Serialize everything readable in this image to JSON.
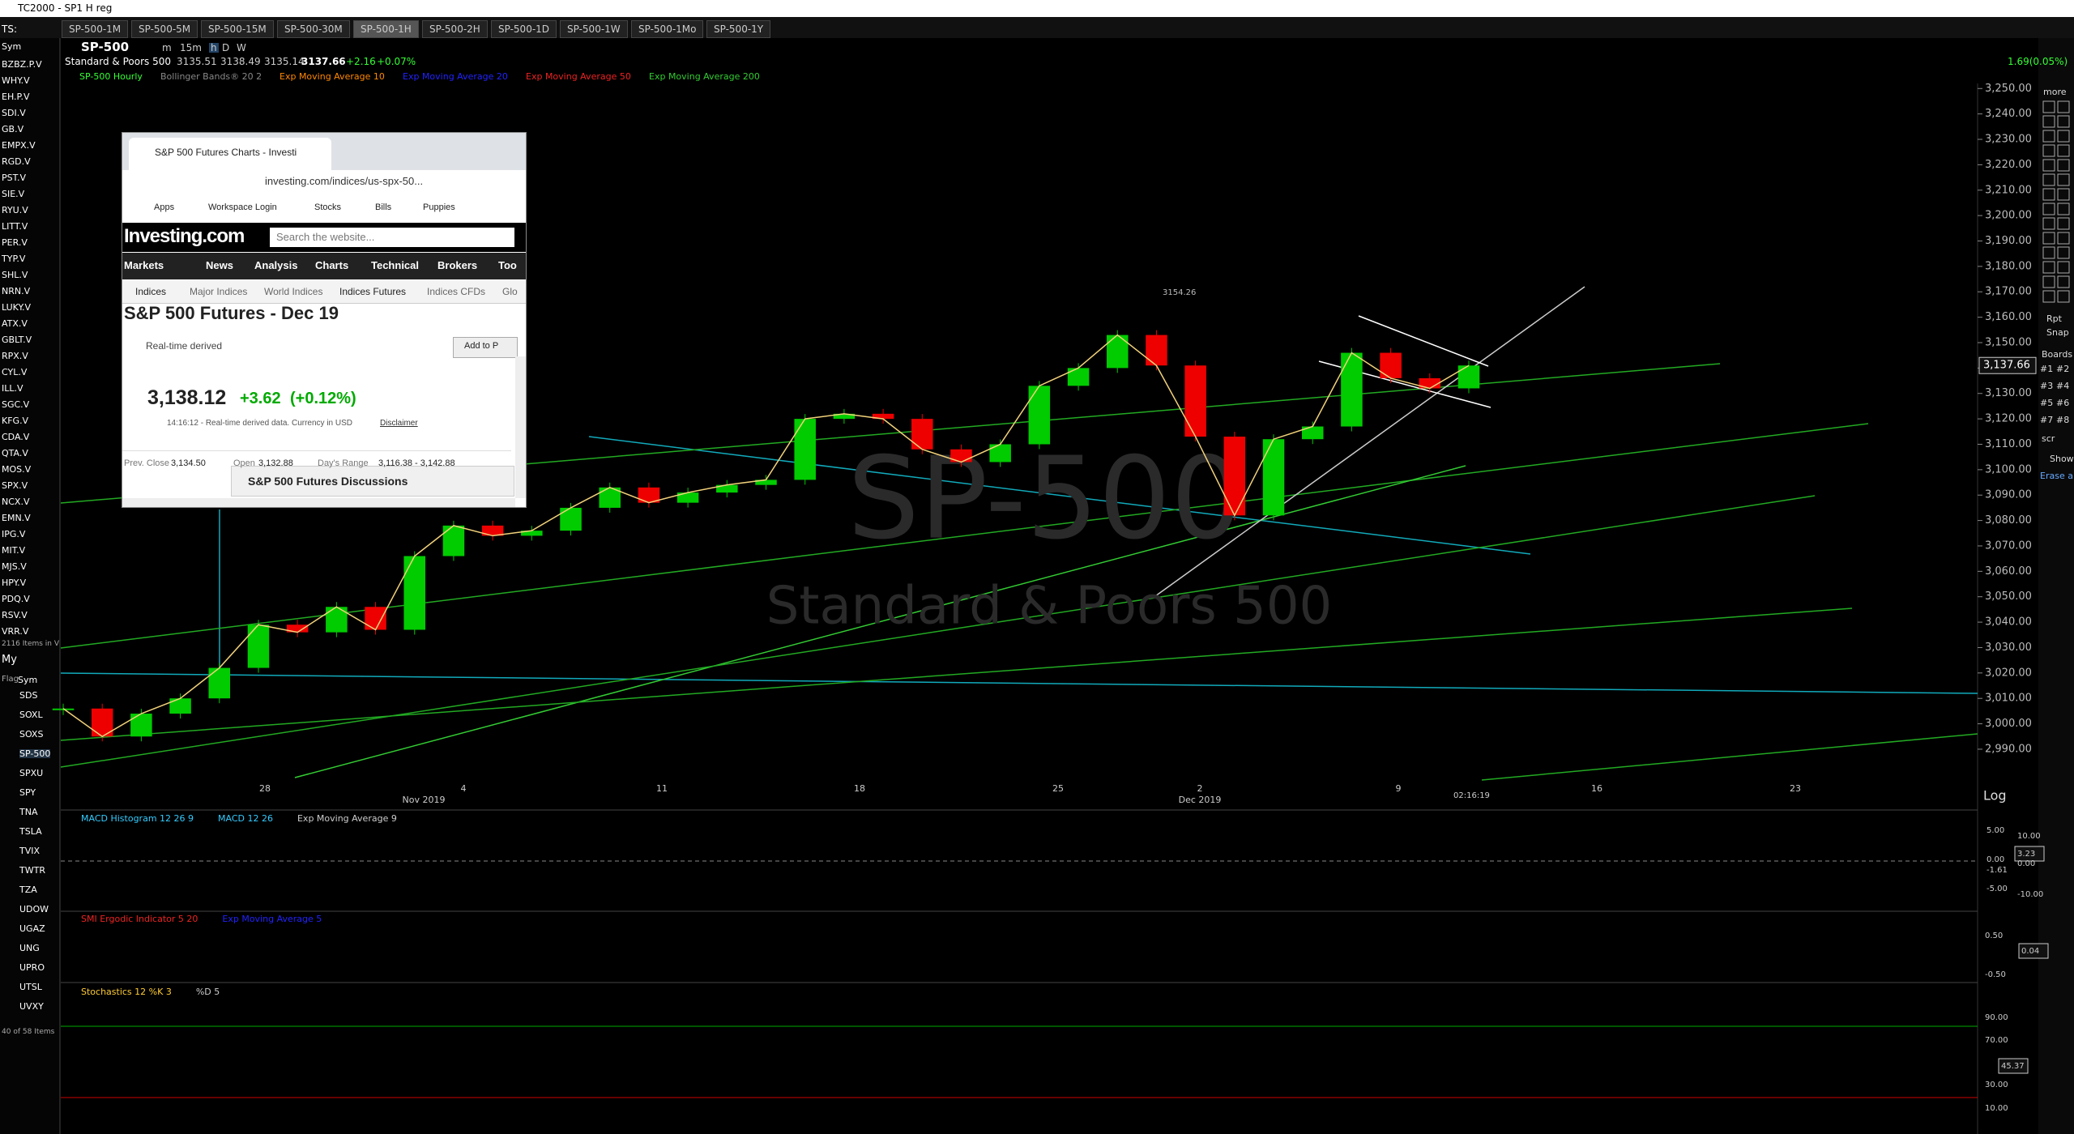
{
  "title_bar": "TC2000 - SP1 H reg",
  "tabs": [
    "SP-500-1M",
    "SP-500-5M",
    "SP-500-15M",
    "SP-500-30M",
    "SP-500-1H",
    "SP-500-2H",
    "SP-500-1D",
    "SP-500-1W",
    "SP-500-1Mo",
    "SP-500-1Y"
  ],
  "symbol": "SP-500",
  "timeframes": [
    "m",
    "15m",
    "h",
    "D",
    "W"
  ],
  "info": {
    "name": "Standard & Poors 500",
    "open": "3135.51",
    "high": "3138.49",
    "low": "3135.14",
    "last": "3137.66",
    "change": "+2.16",
    "change_pct": "+0.07%",
    "right_change": "1.69(0.05%)"
  },
  "indicators": [
    "SP-500 Hourly",
    "Bollinger Bands® 20 2",
    "Exp Moving Average 10",
    "Exp Moving Average 20",
    "Exp Moving Average 50",
    "Exp Moving Average 200"
  ],
  "watchlist": {
    "label": "TS:",
    "header": "Sym",
    "symbols": [
      "BZBZ.P.V",
      "WHY.V",
      "EH.P.V",
      "SDI.V",
      "GB.V",
      "EMPX.V",
      "RGD.V",
      "PST.V",
      "SIE.V",
      "RYU.V",
      "LITT.V",
      "PER.V",
      "TYP.V",
      "SHL.V",
      "NRN.V",
      "LUKY.V",
      "ATX.V",
      "GBLT.V",
      "RPX.V",
      "CYL.V",
      "ILL.V",
      "SGC.V",
      "KFG.V",
      "CDA.V",
      "QTA.V",
      "MOS.V",
      "SPX.V",
      "NCX.V",
      "EMN.V",
      "IPG.V",
      "MIT.V",
      "MJS.V",
      "HPY.V",
      "PDQ.V",
      "RSV.V",
      "VRR.V"
    ],
    "count": "2116 Items in V"
  },
  "watchlist2": {
    "label": "My",
    "flag": "Flag",
    "header": "Sym",
    "symbols": [
      "SDS",
      "SOXL",
      "SOXS",
      "SP-500",
      "SPXU",
      "SPY",
      "TNA",
      "TSLA",
      "TVIX",
      "TWTR",
      "TZA",
      "UDOW",
      "UGAZ",
      "UNG",
      "UPRO",
      "UTSL",
      "UVXY"
    ],
    "count": "40 of 58 Items"
  },
  "chart": {
    "watermark": "SP-500",
    "watermark_sub": "Standard & Poors 500",
    "annotation": "3154.26",
    "time": "02:16:19",
    "price_tag": "3,137.66",
    "scale": "Log",
    "ylim": [
      2975,
      3252
    ],
    "yticks": [
      {
        "value": 2990,
        "label": "2,990.00"
      },
      {
        "value": 3000,
        "label": "3,000.00"
      },
      {
        "value": 3010,
        "label": "3,010.00"
      },
      {
        "value": 3020,
        "label": "3,020.00"
      },
      {
        "value": 3030,
        "label": "3,030.00"
      },
      {
        "value": 3040,
        "label": "3,040.00"
      },
      {
        "value": 3050,
        "label": "3,050.00"
      },
      {
        "value": 3060,
        "label": "3,060.00"
      },
      {
        "value": 3070,
        "label": "3,070.00"
      },
      {
        "value": 3080,
        "label": "3,080.00"
      },
      {
        "value": 3090,
        "label": "3,090.00"
      },
      {
        "value": 3100,
        "label": "3,100.00"
      },
      {
        "value": 3110,
        "label": "3,110.00"
      },
      {
        "value": 3120,
        "label": "3,120.00"
      },
      {
        "value": 3130,
        "label": "3,130.00"
      },
      {
        "value": 3140,
        "label": "3,140.00"
      },
      {
        "value": 3150,
        "label": "3,150.00"
      },
      {
        "value": 3160,
        "label": "3,160.00"
      },
      {
        "value": 3170,
        "label": "3,170.00"
      },
      {
        "value": 3180,
        "label": "3,180.00"
      },
      {
        "value": 3190,
        "label": "3,190.00"
      },
      {
        "value": 3200,
        "label": "3,200.00"
      },
      {
        "value": 3210,
        "label": "3,210.00"
      },
      {
        "value": 3220,
        "label": "3,220.00"
      },
      {
        "value": 3230,
        "label": "3,230.00"
      },
      {
        "value": 3240,
        "label": "3,240.00"
      },
      {
        "value": 3250,
        "label": "3,250.00"
      }
    ],
    "closes": [
      3006,
      2995,
      3004,
      3010,
      3022,
      3039,
      3036,
      3046,
      3037,
      3066,
      3078,
      3074,
      3076,
      3085,
      3093,
      3087,
      3091,
      3094,
      3096,
      3120,
      3122,
      3120,
      3108,
      3103,
      3110,
      3133,
      3140,
      3153,
      3141,
      3113,
      3082,
      3112,
      3117,
      3146,
      3136,
      3132,
      3141
    ],
    "dates": [
      "28",
      "Nov 2019",
      "4",
      "11",
      "18",
      "25",
      "2",
      "Dec 2019",
      "9",
      "16",
      "23"
    ]
  },
  "macd": {
    "labels": [
      "MACD Histogram 12 26 9",
      "MACD 12 26",
      "Exp Moving Average 9"
    ],
    "axis": [
      "5.00",
      "10.00",
      "3.23",
      "0.00",
      "0.00",
      "-1.61",
      "-5.00",
      "-10.00"
    ]
  },
  "smi": {
    "labels": [
      "SMI Ergodic Indicator 5 20",
      "Exp Moving Average 5"
    ],
    "axis": [
      "0.50",
      "0.04",
      "-0.50"
    ]
  },
  "stoch": {
    "labels": [
      "Stochastics 12 %K 3",
      "%D 5"
    ],
    "axis": [
      "90.00",
      "70.00",
      "45.37",
      "30.00",
      "10.00"
    ]
  },
  "toolbar": [
    "more",
    "Rpt",
    "Snap",
    "Boards",
    "#1",
    "#2",
    "#3",
    "#4",
    "#5",
    "#6",
    "#7",
    "#8",
    "scr",
    "Show",
    "Erase all"
  ],
  "browser": {
    "tab_title": "S&P 500 Futures Charts - Investi",
    "url": "investing.com/indices/us-spx-50...",
    "bookmarks": [
      "Apps",
      "Workspace Login",
      "Stocks",
      "Bills",
      "Puppies"
    ],
    "logo": "Investing.com",
    "search": "Search the website...",
    "nav": [
      "Markets",
      "News",
      "Analysis",
      "Charts",
      "Technical",
      "Brokers",
      "Too"
    ],
    "subnav": [
      "Indices",
      "Major Indices",
      "World Indices",
      "Indices Futures",
      "Indices CFDs",
      "Glo"
    ],
    "heading": "S&P 500 Futures - Dec 19",
    "realtime": "Real-time derived",
    "add_button": "Add to P",
    "price": "3,138.12",
    "change": "+3.62",
    "change_pct": "(+0.12%)",
    "time_note": "14:16:12 - Real-time derived data. Currency in USD",
    "disclaimer": "Disclaimer",
    "stats": [
      "Prev. Close",
      "3,134.50",
      "Open",
      "3,132.88",
      "Day's Range",
      "3,116.38 - 3,142.88"
    ],
    "discussions": "S&P 500 Futures Discussions"
  }
}
